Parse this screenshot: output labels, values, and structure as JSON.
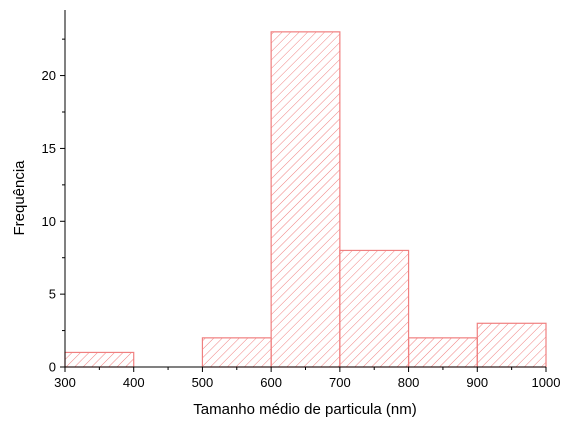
{
  "chart_data": {
    "type": "bar",
    "title": "",
    "xlabel": "Tamanho médio de particula (nm)",
    "ylabel": "Frequência",
    "bins": [
      {
        "start": 300,
        "end": 400,
        "count": 1
      },
      {
        "start": 400,
        "end": 500,
        "count": 0
      },
      {
        "start": 500,
        "end": 600,
        "count": 2
      },
      {
        "start": 600,
        "end": 700,
        "count": 23
      },
      {
        "start": 700,
        "end": 800,
        "count": 8
      },
      {
        "start": 800,
        "end": 900,
        "count": 2
      },
      {
        "start": 900,
        "end": 1000,
        "count": 3
      }
    ],
    "xlim": [
      300,
      1000
    ],
    "ylim": [
      0,
      24.5
    ],
    "x_ticks": [
      "300",
      "400",
      "500",
      "600",
      "700",
      "800",
      "900",
      "1000"
    ],
    "y_ticks": [
      "0",
      "5",
      "10",
      "15",
      "20"
    ],
    "grid": false,
    "bar_fill": "hatched",
    "bar_color": "#f08080"
  }
}
